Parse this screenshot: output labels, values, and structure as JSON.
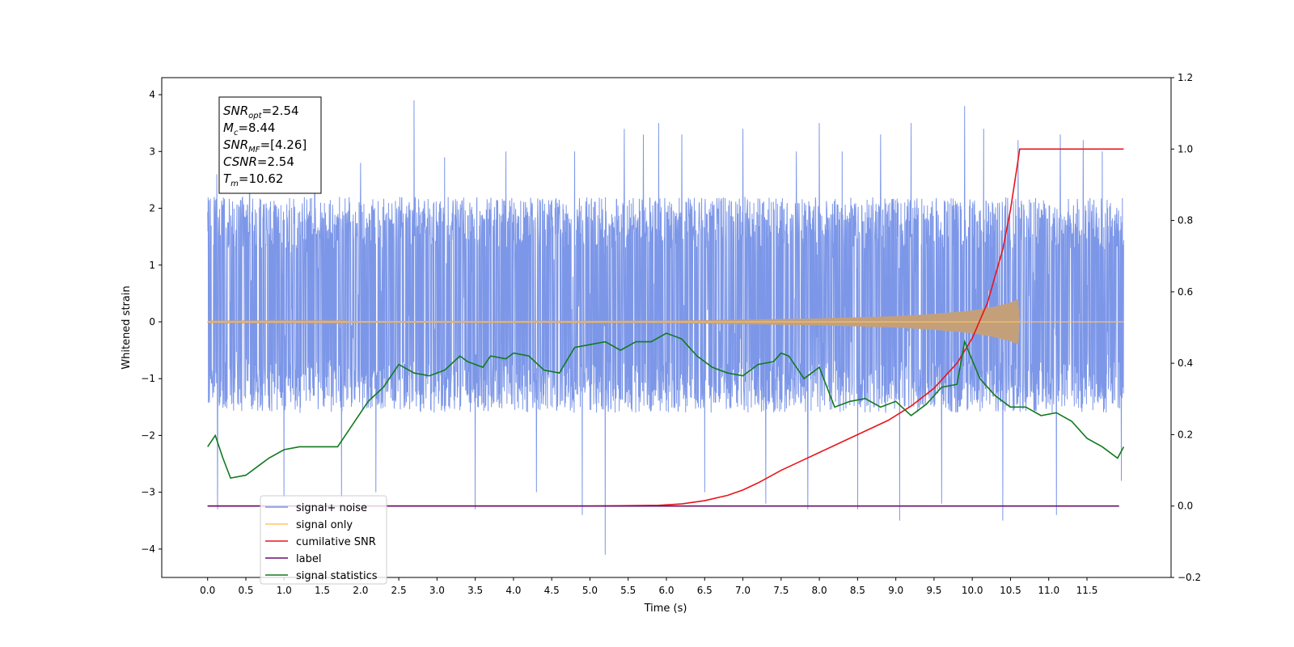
{
  "chart_data": {
    "type": "line",
    "xlabel": "Time (s)",
    "ylabel": "Whitened strain",
    "xlim": [
      -0.6,
      12.6
    ],
    "ylim": [
      -4.5,
      4.3
    ],
    "y2lim": [
      -0.2,
      1.2
    ],
    "grid": false,
    "legend_placement": "lower-left",
    "x_ticks": [
      "0.0",
      "0.5",
      "1.0",
      "1.5",
      "2.0",
      "2.5",
      "3.0",
      "3.5",
      "4.0",
      "4.5",
      "5.0",
      "5.5",
      "6.0",
      "6.5",
      "7.0",
      "7.5",
      "8.0",
      "8.5",
      "9.0",
      "9.5",
      "10.0",
      "10.5",
      "11.0",
      "11.5"
    ],
    "y_ticks": [
      "4",
      "3",
      "2",
      "1",
      "0",
      "−1",
      "−2",
      "−3",
      "−4"
    ],
    "y2_ticks": [
      "1.2",
      "1.0",
      "0.8",
      "0.6",
      "0.4",
      "0.2",
      "0.0",
      "−0.2"
    ],
    "annotation": {
      "lines": [
        {
          "base": "SNR",
          "sub": "opt",
          "value": "=2.54"
        },
        {
          "base": "M",
          "sub": "c",
          "value": "=8.44"
        },
        {
          "base": "SNR",
          "sub": "MF",
          "value": "=[4.26]"
        },
        {
          "base": "CSNR",
          "sub": "",
          "value": "=2.54"
        },
        {
          "base": "T",
          "sub": "m",
          "value": "=10.62"
        }
      ]
    },
    "legend": [
      {
        "label": "signal+ noise",
        "color": "#7a95e8"
      },
      {
        "label": "signal only",
        "color": "#ffc46a"
      },
      {
        "label": "cumilative SNR",
        "color": "#e8141c"
      },
      {
        "label": "label",
        "color": "#6a0d6e"
      },
      {
        "label": "signal statistics",
        "color": "#127a1e"
      }
    ],
    "series": [
      {
        "name": "signal+ noise",
        "axis": "left",
        "color": "#7a95e8",
        "t_range": [
          0,
          11.98
        ],
        "band": [
          -1.6,
          2.2
        ],
        "spikes": [
          [
            0.12,
            2.6
          ],
          [
            0.13,
            -3.3
          ],
          [
            0.55,
            2.9
          ],
          [
            1.0,
            -3.1
          ],
          [
            1.4,
            3.0
          ],
          [
            1.75,
            -3.1
          ],
          [
            2.0,
            2.8
          ],
          [
            2.2,
            -3.0
          ],
          [
            2.7,
            3.9
          ],
          [
            3.1,
            2.9
          ],
          [
            3.5,
            -3.3
          ],
          [
            3.9,
            3.0
          ],
          [
            4.3,
            -3.0
          ],
          [
            4.8,
            3.0
          ],
          [
            4.9,
            -3.4
          ],
          [
            5.2,
            -4.1
          ],
          [
            5.45,
            3.4
          ],
          [
            5.7,
            3.3
          ],
          [
            5.9,
            3.5
          ],
          [
            6.2,
            3.3
          ],
          [
            6.5,
            -3.0
          ],
          [
            7.0,
            3.4
          ],
          [
            7.3,
            -3.2
          ],
          [
            7.7,
            3.0
          ],
          [
            7.85,
            -3.3
          ],
          [
            8.0,
            3.5
          ],
          [
            8.3,
            3.0
          ],
          [
            8.5,
            -3.3
          ],
          [
            8.8,
            3.3
          ],
          [
            9.05,
            -3.5
          ],
          [
            9.2,
            3.5
          ],
          [
            9.6,
            -3.2
          ],
          [
            9.9,
            3.8
          ],
          [
            10.15,
            3.4
          ],
          [
            10.4,
            -3.5
          ],
          [
            10.6,
            3.2
          ],
          [
            11.1,
            -3.4
          ],
          [
            11.15,
            3.3
          ],
          [
            11.45,
            3.2
          ],
          [
            11.7,
            3.0
          ],
          [
            11.95,
            -2.8
          ]
        ]
      },
      {
        "name": "signal only",
        "axis": "left",
        "color": "#ffc46a",
        "t_range": [
          0,
          11.98
        ],
        "merger_time": 10.62,
        "envelope": [
          [
            0,
            0.01
          ],
          [
            6.0,
            0.02
          ],
          [
            7.0,
            0.04
          ],
          [
            8.0,
            0.06
          ],
          [
            9.0,
            0.1
          ],
          [
            9.5,
            0.14
          ],
          [
            10.0,
            0.2
          ],
          [
            10.3,
            0.27
          ],
          [
            10.5,
            0.34
          ],
          [
            10.6,
            0.4
          ],
          [
            10.62,
            0.0
          ],
          [
            11.98,
            0.0
          ]
        ]
      },
      {
        "name": "cumilative SNR",
        "axis": "right",
        "color": "#e8141c",
        "x": [
          0,
          5.0,
          5.9,
          6.2,
          6.5,
          6.8,
          7.0,
          7.2,
          7.5,
          7.8,
          8.0,
          8.3,
          8.6,
          8.9,
          9.2,
          9.5,
          9.8,
          10.0,
          10.2,
          10.4,
          10.5,
          10.6,
          10.62,
          11.98
        ],
        "y": [
          0,
          0,
          0.002,
          0.006,
          0.015,
          0.03,
          0.045,
          0.065,
          0.1,
          0.13,
          0.15,
          0.18,
          0.21,
          0.24,
          0.28,
          0.33,
          0.4,
          0.47,
          0.57,
          0.72,
          0.83,
          0.97,
          1.0,
          1.0
        ]
      },
      {
        "name": "label",
        "axis": "right",
        "color": "#6a0d6e",
        "x": [
          0,
          11.92
        ],
        "y": [
          0,
          0
        ]
      },
      {
        "name": "signal statistics",
        "axis": "left",
        "color": "#127a1e",
        "x": [
          0,
          0.1,
          0.2,
          0.3,
          0.5,
          0.7,
          0.8,
          1.0,
          1.2,
          1.5,
          1.7,
          1.9,
          2.1,
          2.3,
          2.5,
          2.7,
          2.9,
          3.1,
          3.3,
          3.4,
          3.6,
          3.7,
          3.9,
          4.0,
          4.2,
          4.4,
          4.6,
          4.8,
          5.0,
          5.2,
          5.4,
          5.6,
          5.8,
          6.0,
          6.2,
          6.4,
          6.6,
          6.8,
          7.0,
          7.2,
          7.4,
          7.5,
          7.6,
          7.8,
          8.0,
          8.2,
          8.4,
          8.6,
          8.8,
          9.0,
          9.2,
          9.4,
          9.6,
          9.8,
          9.9,
          10.1,
          10.3,
          10.5,
          10.7,
          10.9,
          11.1,
          11.3,
          11.5,
          11.7,
          11.9,
          11.98
        ],
        "y": [
          -2.2,
          -2.0,
          -2.4,
          -2.75,
          -2.7,
          -2.5,
          -2.4,
          -2.25,
          -2.2,
          -2.2,
          -2.2,
          -1.8,
          -1.4,
          -1.15,
          -0.75,
          -0.9,
          -0.95,
          -0.85,
          -0.6,
          -0.7,
          -0.8,
          -0.6,
          -0.65,
          -0.55,
          -0.6,
          -0.85,
          -0.9,
          -0.45,
          -0.4,
          -0.35,
          -0.5,
          -0.35,
          -0.35,
          -0.2,
          -0.3,
          -0.6,
          -0.8,
          -0.9,
          -0.95,
          -0.75,
          -0.7,
          -0.55,
          -0.6,
          -1.0,
          -0.8,
          -1.5,
          -1.4,
          -1.35,
          -1.5,
          -1.4,
          -1.65,
          -1.45,
          -1.15,
          -1.1,
          -0.35,
          -1.0,
          -1.3,
          -1.5,
          -1.5,
          -1.65,
          -1.6,
          -1.75,
          -2.05,
          -2.2,
          -2.4,
          -2.2
        ]
      }
    ]
  }
}
